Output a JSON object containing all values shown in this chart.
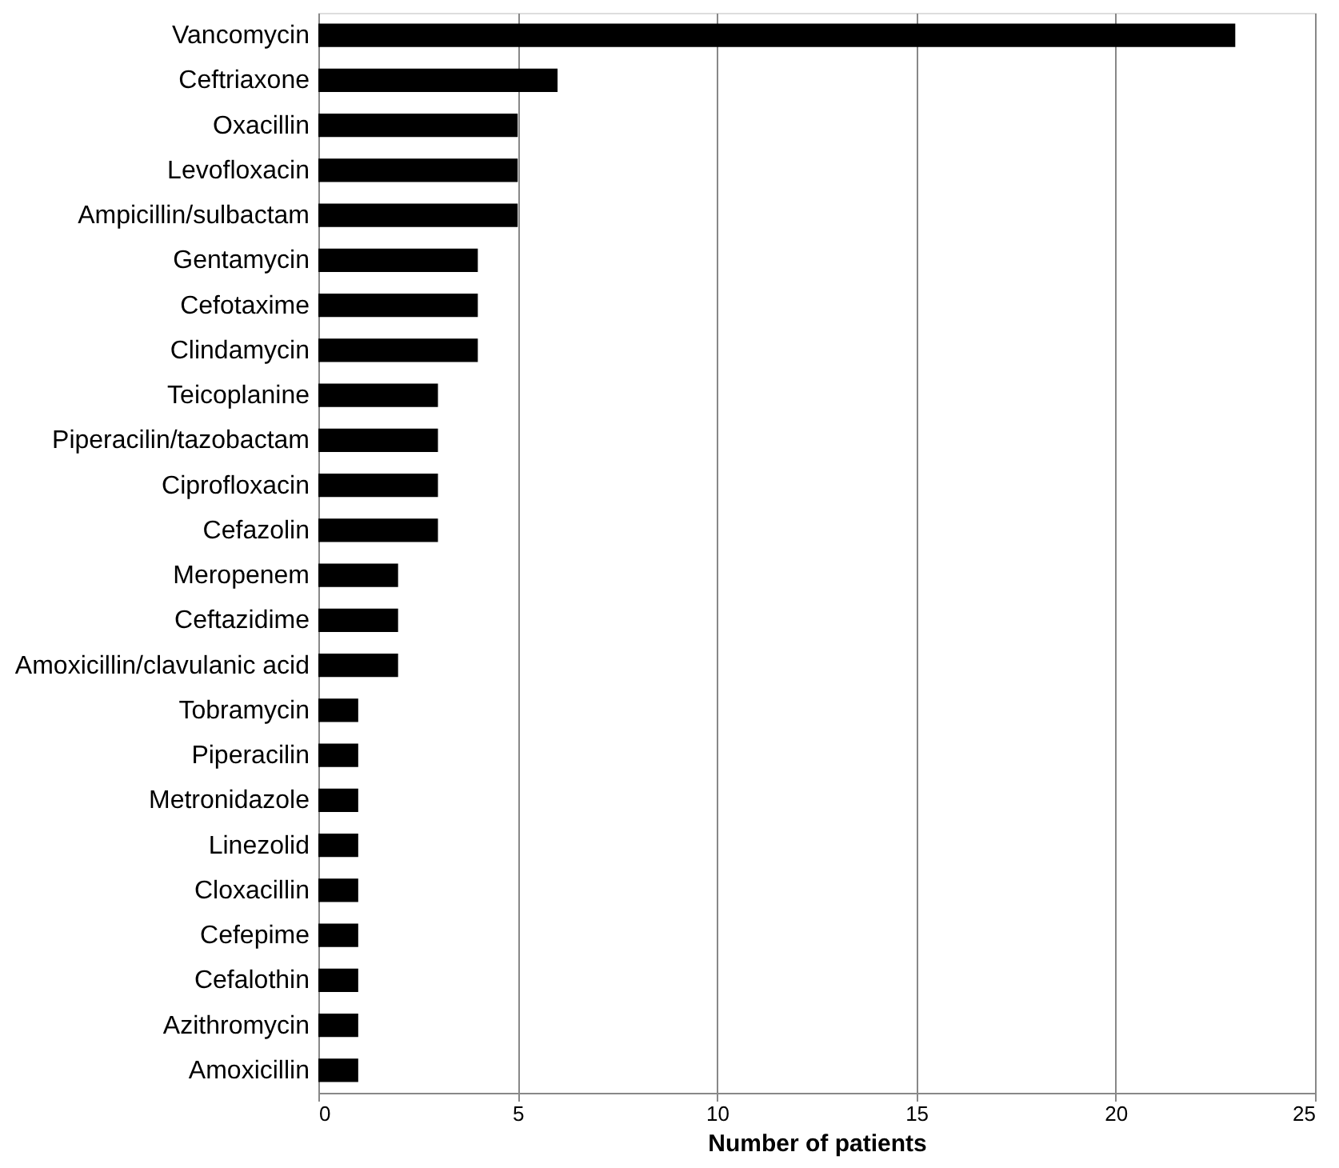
{
  "chart_data": {
    "type": "bar",
    "orientation": "horizontal",
    "xlabel": "Number of patients",
    "categories": [
      "Vancomycin",
      "Ceftriaxone",
      "Oxacillin",
      "Levofloxacin",
      "Ampicillin/sulbactam",
      "Gentamycin",
      "Cefotaxime",
      "Clindamycin",
      "Teicoplanine",
      "Piperacilin/tazobactam",
      "Ciprofloxacin",
      "Cefazolin",
      "Meropenem",
      "Ceftazidime",
      "Amoxicillin/clavulanic acid",
      "Tobramycin",
      "Piperacilin",
      "Metronidazole",
      "Linezolid",
      "Cloxacillin",
      "Cefepime",
      "Cefalothin",
      "Azithromycin",
      "Amoxicillin"
    ],
    "values": [
      23,
      6,
      5,
      5,
      5,
      4,
      4,
      4,
      3,
      3,
      3,
      3,
      2,
      2,
      2,
      1,
      1,
      1,
      1,
      1,
      1,
      1,
      1,
      1
    ],
    "color": "#000000",
    "xlim": [
      0,
      25
    ],
    "xticks": [
      0,
      5,
      10,
      15,
      20,
      25
    ],
    "grid": "x"
  }
}
